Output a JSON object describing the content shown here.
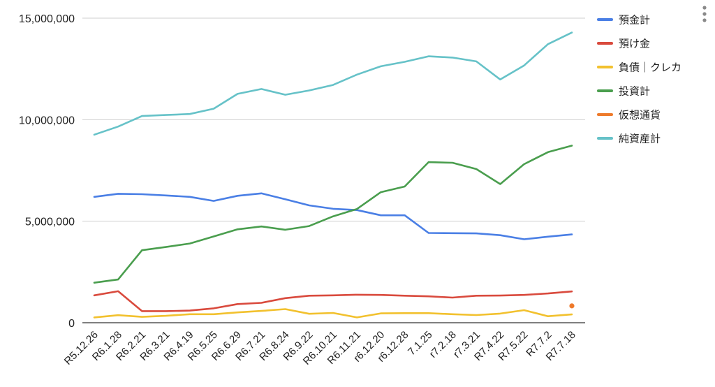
{
  "colors": {
    "blue": "#4a7fe5",
    "red": "#d94a3d",
    "yellow": "#f2c12e",
    "green": "#4a9e4e",
    "orange": "#ee7a2b",
    "teal": "#66c2c8"
  },
  "menu": {
    "icon": "more-vert-icon"
  },
  "chart_data": {
    "type": "line",
    "title": "",
    "xlabel": "",
    "ylabel": "",
    "ylim": [
      0,
      15000000
    ],
    "yticks": [
      0,
      5000000,
      10000000,
      15000000
    ],
    "ytick_labels": [
      "0",
      "5,000,000",
      "10,000,000",
      "15,000,000"
    ],
    "grid": true,
    "legend_position": "right",
    "categories": [
      "R5.12.26",
      "R6.1.28",
      "R6.2.21",
      "R6.3.21",
      "R6.4.19",
      "R6.5.25",
      "R6.6.29",
      "R6.7.21",
      "R6.8.24",
      "R6.9.22",
      "R6.10.21",
      "R6.11.21",
      "r6.12.20",
      "r6.12.28",
      "7.1.25",
      "r7.2.18",
      "r7.3.21",
      "R7.4.22",
      "R7.5.22",
      "R7.7.2",
      "R7.7.18"
    ],
    "series": [
      {
        "name": "預金計",
        "color": "#4a7fe5",
        "values": [
          6200000,
          6350000,
          6330000,
          6270000,
          6200000,
          6000000,
          6250000,
          6370000,
          6080000,
          5780000,
          5610000,
          5550000,
          5290000,
          5290000,
          4420000,
          4410000,
          4400000,
          4310000,
          4110000,
          4240000,
          4350000
        ]
      },
      {
        "name": "預け金",
        "color": "#d94a3d",
        "values": [
          1350000,
          1550000,
          570000,
          570000,
          600000,
          710000,
          920000,
          980000,
          1210000,
          1330000,
          1350000,
          1380000,
          1370000,
          1330000,
          1300000,
          1240000,
          1330000,
          1340000,
          1370000,
          1440000,
          1540000
        ]
      },
      {
        "name": "負債｜クレカ",
        "color": "#f2c12e",
        "values": [
          260000,
          370000,
          290000,
          340000,
          420000,
          420000,
          510000,
          580000,
          670000,
          440000,
          480000,
          260000,
          460000,
          470000,
          470000,
          420000,
          380000,
          450000,
          620000,
          320000,
          410000
        ]
      },
      {
        "name": "投資計",
        "color": "#4a9e4e",
        "values": [
          1970000,
          2130000,
          3570000,
          3730000,
          3900000,
          4250000,
          4600000,
          4740000,
          4580000,
          4760000,
          5240000,
          5600000,
          6430000,
          6710000,
          7910000,
          7880000,
          7570000,
          6830000,
          7810000,
          8400000,
          8720000
        ]
      },
      {
        "name": "仮想通貨",
        "color": "#ee7a2b",
        "values": [
          null,
          null,
          null,
          null,
          null,
          null,
          null,
          null,
          null,
          null,
          null,
          null,
          null,
          null,
          null,
          null,
          null,
          null,
          null,
          null,
          830000
        ]
      },
      {
        "name": "純資産計",
        "color": "#66c2c8",
        "values": [
          9260000,
          9660000,
          10180000,
          10230000,
          10280000,
          10540000,
          11270000,
          11510000,
          11230000,
          11440000,
          11710000,
          12220000,
          12630000,
          12850000,
          13120000,
          13060000,
          12870000,
          11980000,
          12670000,
          13720000,
          14290000
        ]
      }
    ]
  }
}
